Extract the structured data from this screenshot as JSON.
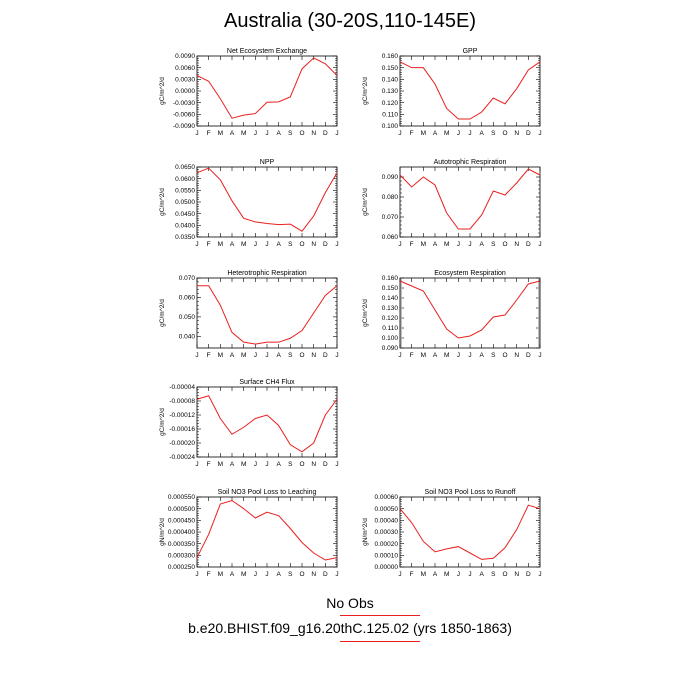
{
  "page": {
    "title": "Australia (30-20S,110-145E)"
  },
  "colors": {
    "series": "#e8201e",
    "axis": "#000000"
  },
  "months": [
    "J",
    "F",
    "M",
    "A",
    "M",
    "J",
    "J",
    "A",
    "S",
    "O",
    "N",
    "D",
    "J"
  ],
  "legend": {
    "obs_label": "No Obs",
    "run_label": "b.e20.BHIST.f09_g16.20thC.125.02 (yrs 1850-1863)"
  },
  "chart_data": [
    {
      "type": "line",
      "title": "Net Ecosystem Exchange",
      "ylabel": "gC/m^2/d",
      "ylim": [
        -0.009,
        0.009
      ],
      "yticks": [
        0.009,
        0.006,
        0.003,
        0.0,
        -0.003,
        -0.006,
        -0.009
      ],
      "ytick_labels": [
        "0.0090",
        "0.0060",
        "0.0030",
        "0.0000",
        "-0.0030",
        "-0.0060",
        "-0.0090"
      ],
      "values": [
        0.004,
        0.0025,
        -0.002,
        -0.007,
        -0.0062,
        -0.0058,
        -0.0029,
        -0.0028,
        -0.0015,
        0.0057,
        0.0085,
        0.007,
        0.004
      ]
    },
    {
      "type": "line",
      "title": "GPP",
      "ylabel": "gC/m^2/d",
      "ylim": [
        0.1,
        0.16
      ],
      "yticks": [
        0.16,
        0.15,
        0.14,
        0.13,
        0.12,
        0.11,
        0.1
      ],
      "ytick_labels": [
        "0.160",
        "0.150",
        "0.140",
        "0.130",
        "0.120",
        "0.110",
        "0.100"
      ],
      "values": [
        0.155,
        0.15,
        0.15,
        0.136,
        0.115,
        0.106,
        0.106,
        0.112,
        0.124,
        0.119,
        0.132,
        0.148,
        0.155
      ]
    },
    {
      "type": "line",
      "title": "NPP",
      "ylabel": "gC/m^2/d",
      "ylim": [
        0.035,
        0.065
      ],
      "yticks": [
        0.065,
        0.06,
        0.055,
        0.05,
        0.045,
        0.04,
        0.035
      ],
      "ytick_labels": [
        "0.0650",
        "0.0600",
        "0.0550",
        "0.0500",
        "0.0450",
        "0.0400",
        "0.0350"
      ],
      "values": [
        0.0625,
        0.0645,
        0.0595,
        0.0505,
        0.043,
        0.0415,
        0.0408,
        0.0403,
        0.0405,
        0.0375,
        0.044,
        0.054,
        0.0625
      ]
    },
    {
      "type": "line",
      "title": "Autotrophic Respiration",
      "ylabel": "gC/m^2/d",
      "ylim": [
        0.06,
        0.095
      ],
      "yticks": [
        0.09,
        0.08,
        0.07,
        0.06
      ],
      "ytick_labels": [
        "0.090",
        "0.080",
        "0.070",
        "0.060"
      ],
      "values": [
        0.091,
        0.085,
        0.09,
        0.086,
        0.072,
        0.064,
        0.064,
        0.071,
        0.083,
        0.081,
        0.087,
        0.094,
        0.091
      ]
    },
    {
      "type": "line",
      "title": "Heterotrophic Respiration",
      "ylabel": "gC/m^2/d",
      "ylim": [
        0.034,
        0.07
      ],
      "yticks": [
        0.07,
        0.06,
        0.05,
        0.04
      ],
      "ytick_labels": [
        "0.070",
        "0.060",
        "0.050",
        "0.040"
      ],
      "values": [
        0.066,
        0.066,
        0.056,
        0.042,
        0.037,
        0.036,
        0.037,
        0.037,
        0.039,
        0.043,
        0.052,
        0.061,
        0.066
      ]
    },
    {
      "type": "line",
      "title": "Ecosystem Respiration",
      "ylabel": "gC/m^2/d",
      "ylim": [
        0.09,
        0.16
      ],
      "yticks": [
        0.16,
        0.15,
        0.14,
        0.13,
        0.12,
        0.11,
        0.1,
        0.09
      ],
      "ytick_labels": [
        "0.160",
        "0.150",
        "0.140",
        "0.130",
        "0.120",
        "0.110",
        "0.100",
        "0.090"
      ],
      "values": [
        0.157,
        0.152,
        0.147,
        0.128,
        0.109,
        0.1,
        0.102,
        0.108,
        0.121,
        0.123,
        0.138,
        0.154,
        0.157
      ]
    },
    {
      "type": "line",
      "title": "Surface CH4 Flux",
      "ylabel": "gC/m^2/d",
      "ylim": [
        -0.00024,
        -4e-05
      ],
      "yticks": [
        -4e-05,
        -8e-05,
        -0.00012,
        -0.00016,
        -0.0002,
        -0.00024
      ],
      "ytick_labels": [
        "-0.00004",
        "-0.00008",
        "-0.00012",
        "-0.00016",
        "-0.00020",
        "-0.00024"
      ],
      "values": [
        -7.5e-05,
        -6.5e-05,
        -0.00013,
        -0.000175,
        -0.000155,
        -0.00013,
        -0.00012,
        -0.00015,
        -0.000205,
        -0.000225,
        -0.0002,
        -0.00012,
        -7.5e-05
      ]
    },
    {
      "type": "line",
      "title": "Soil NO3 Pool Loss to Leaching",
      "ylabel": "gN/m^2/d",
      "ylim": [
        0.00025,
        0.00055
      ],
      "yticks": [
        0.00055,
        0.0005,
        0.00045,
        0.0004,
        0.00035,
        0.0003,
        0.00025
      ],
      "ytick_labels": [
        "0.000550",
        "0.000500",
        "0.000450",
        "0.000400",
        "0.000350",
        "0.000300",
        "0.000250"
      ],
      "values": [
        0.00029,
        0.00039,
        0.00052,
        0.000535,
        0.0005,
        0.00046,
        0.000485,
        0.00047,
        0.000415,
        0.000355,
        0.00031,
        0.00028,
        0.00029
      ]
    },
    {
      "type": "line",
      "title": "Soil NO3 Pool Loss to Runoff",
      "ylabel": "gN/m^2/d",
      "ylim": [
        0.0,
        0.0006
      ],
      "yticks": [
        0.0006,
        0.0005,
        0.0004,
        0.0003,
        0.0002,
        0.0001,
        0.0
      ],
      "ytick_labels": [
        "0.00060",
        "0.00050",
        "0.00040",
        "0.00030",
        "0.00020",
        "0.00010",
        "0.00000"
      ],
      "values": [
        0.0005,
        0.00038,
        0.00022,
        0.00013,
        0.000155,
        0.000175,
        0.00012,
        6.5e-05,
        7.5e-05,
        0.000165,
        0.00032,
        0.00053,
        0.0005
      ]
    }
  ]
}
